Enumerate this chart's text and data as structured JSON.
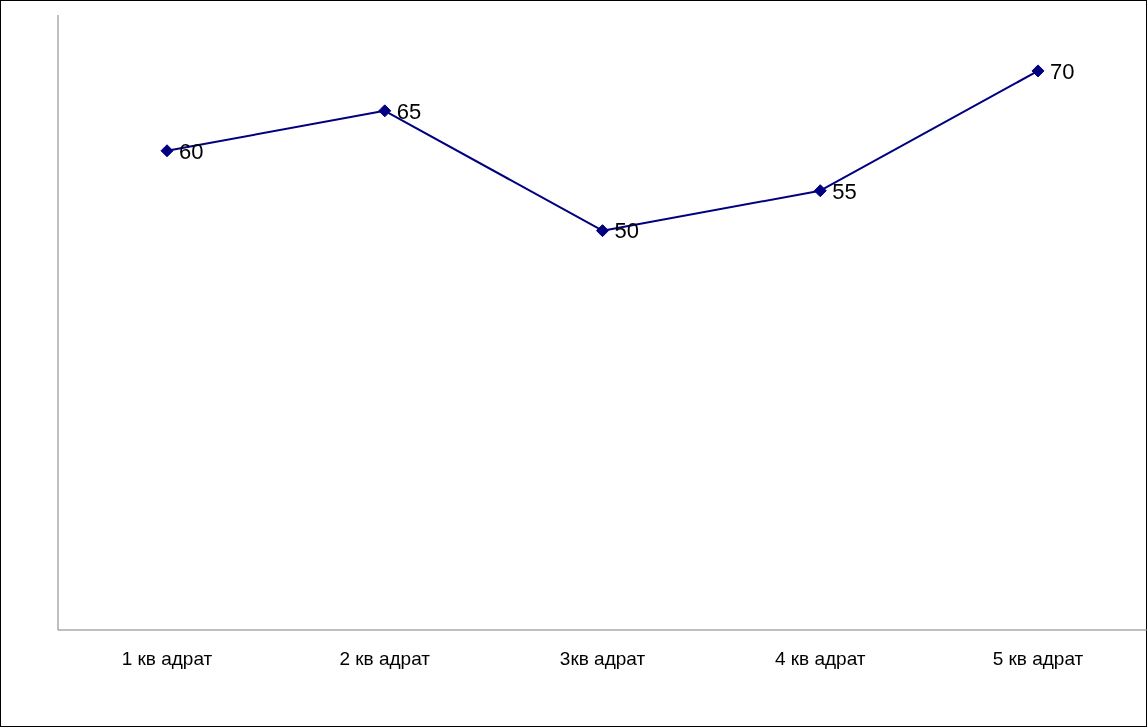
{
  "chart_data": {
    "type": "line",
    "categories": [
      "1 кв адрат",
      "2 кв адрат",
      "3кв адрат",
      "4 кв адрат",
      "5 кв адрат"
    ],
    "series": [
      {
        "color": "#000080",
        "values": [
          60,
          65,
          50,
          55,
          70
        ]
      }
    ],
    "relative": false,
    "data_labels": true,
    "marker": "diamond",
    "grid": false,
    "legend": false,
    "tick_labels": "x"
  }
}
